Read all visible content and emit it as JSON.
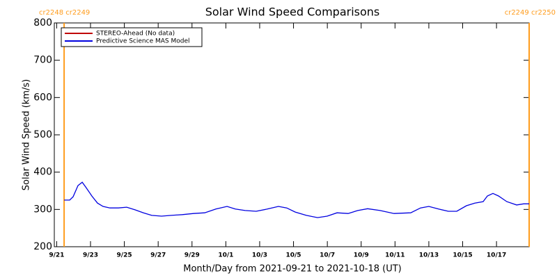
{
  "chart_data": {
    "type": "line",
    "title": "Solar Wind Speed Comparisons",
    "xlabel": "Month/Day from 2021-09-21 to 2021-10-18 (UT)",
    "ylabel": "Solar Wind Speed (km/s)",
    "xlim": [
      -0.14,
      27.93
    ],
    "ylim": [
      200,
      800
    ],
    "yticks": [
      200,
      300,
      400,
      500,
      600,
      700,
      800
    ],
    "xticks": [
      {
        "value": 0,
        "label": "9/21"
      },
      {
        "value": 2,
        "label": "9/23"
      },
      {
        "value": 4,
        "label": "9/25"
      },
      {
        "value": 6,
        "label": "9/27"
      },
      {
        "value": 8,
        "label": "9/29"
      },
      {
        "value": 10,
        "label": "10/1"
      },
      {
        "value": 12,
        "label": "10/3"
      },
      {
        "value": 14,
        "label": "10/5"
      },
      {
        "value": 16,
        "label": "10/7"
      },
      {
        "value": 18,
        "label": "10/9"
      },
      {
        "value": 20,
        "label": "10/11"
      },
      {
        "value": 22,
        "label": "10/13"
      },
      {
        "value": 24,
        "label": "10/15"
      },
      {
        "value": 26,
        "label": "10/17"
      }
    ],
    "markers": [
      {
        "x": 0.44,
        "label": "cr2248 cr2249",
        "color": "#ff9c1c"
      },
      {
        "x": 27.93,
        "label": "cr2249 cr2250",
        "color": "#ff9c1c"
      }
    ],
    "x": [
      0.44,
      0.77,
      0.97,
      1.26,
      1.51,
      1.75,
      2.08,
      2.41,
      2.74,
      3.15,
      3.65,
      4.14,
      4.63,
      5.13,
      5.62,
      6.2,
      6.77,
      7.43,
      8.09,
      8.75,
      9.41,
      10.07,
      10.56,
      11.14,
      11.79,
      12.45,
      13.11,
      13.6,
      14.1,
      14.76,
      15.42,
      15.99,
      16.57,
      17.23,
      17.8,
      18.38,
      19.12,
      19.94,
      20.93,
      21.51,
      22.0,
      22.58,
      23.15,
      23.65,
      24.22,
      24.72,
      25.21,
      25.46,
      25.79,
      26.12,
      26.61,
      27.19,
      27.6,
      27.93
    ],
    "series": [
      {
        "name": "STEREO-Ahead (No data)",
        "color": "#c00000",
        "values": [
          null,
          null,
          null,
          null,
          null,
          null,
          null,
          null,
          null,
          null,
          null,
          null,
          null,
          null,
          null,
          null,
          null,
          null,
          null,
          null,
          null,
          null,
          null,
          null,
          null,
          null,
          null,
          null,
          null,
          null,
          null,
          null,
          null,
          null,
          null,
          null,
          null,
          null,
          null,
          null,
          null,
          null,
          null,
          null,
          null,
          null,
          null,
          null,
          null,
          null,
          null,
          null,
          null,
          null
        ]
      },
      {
        "name": "Predictive Science MAS Model",
        "color": "#0000e0",
        "values": [
          325,
          325,
          334,
          364,
          373,
          358,
          336,
          317,
          308,
          304,
          304,
          306,
          299,
          291,
          284,
          282,
          284,
          286,
          289,
          291,
          301,
          308,
          301,
          297,
          295,
          301,
          308,
          304,
          293,
          284,
          278,
          282,
          291,
          289,
          297,
          302,
          297,
          289,
          291,
          304,
          308,
          301,
          295,
          295,
          310,
          317,
          321,
          336,
          343,
          336,
          321,
          312,
          315,
          315
        ]
      }
    ]
  }
}
